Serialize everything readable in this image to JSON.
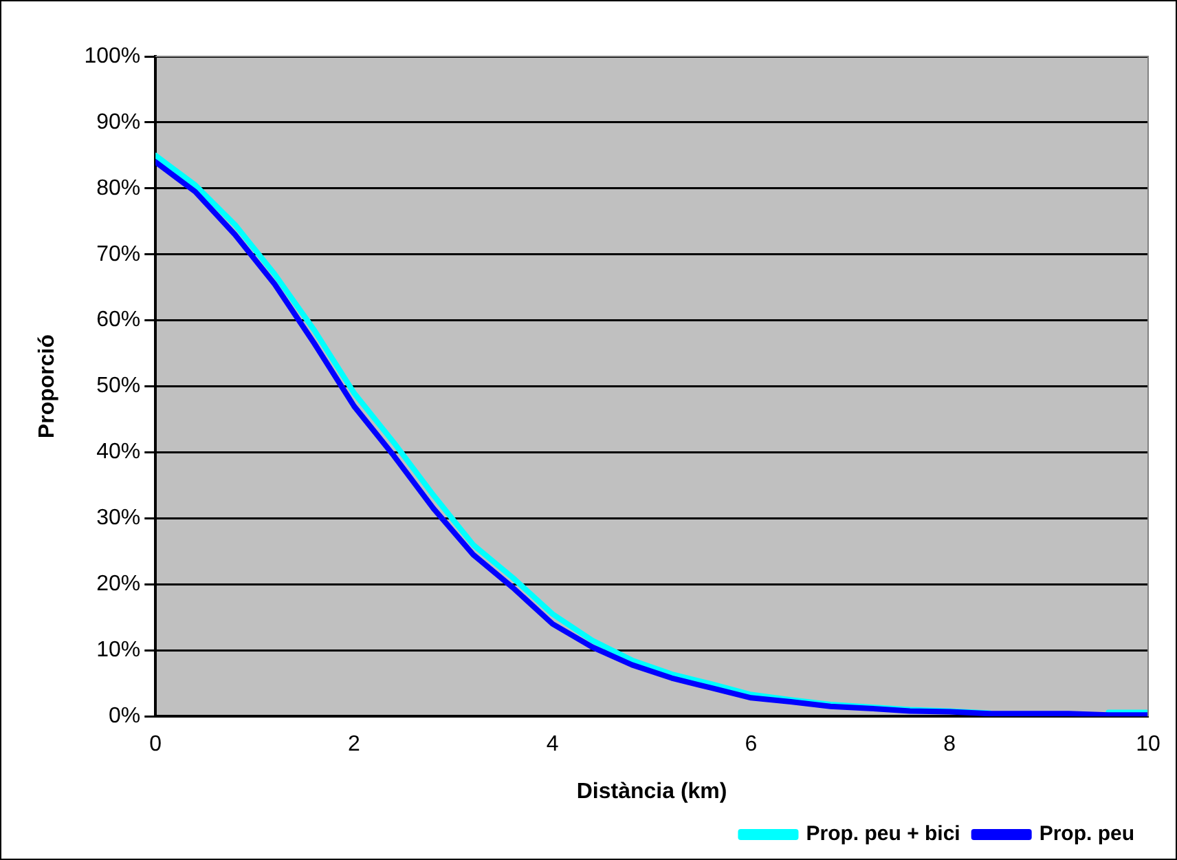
{
  "chart_data": {
    "type": "line",
    "xlabel": "Distància (km)",
    "ylabel": "Proporció",
    "xlim": [
      0,
      10
    ],
    "xticks": [
      0,
      2,
      4,
      6,
      8,
      10
    ],
    "ylim": [
      0,
      100
    ],
    "yticks": [
      {
        "value": 0,
        "label": "0%"
      },
      {
        "value": 10,
        "label": "10%"
      },
      {
        "value": 20,
        "label": "20%"
      },
      {
        "value": 30,
        "label": "30%"
      },
      {
        "value": 40,
        "label": "40%"
      },
      {
        "value": 50,
        "label": "50%"
      },
      {
        "value": 60,
        "label": "60%"
      },
      {
        "value": 70,
        "label": "70%"
      },
      {
        "value": 80,
        "label": "80%"
      },
      {
        "value": 90,
        "label": "90%"
      },
      {
        "value": 100,
        "label": "100%"
      }
    ],
    "grid": "y",
    "legend": "bottom right",
    "marker": "none",
    "line_style": "solid",
    "x": [
      0,
      0.4,
      0.8,
      1.2,
      1.6,
      2.0,
      2.4,
      2.8,
      3.2,
      3.6,
      4.0,
      4.4,
      4.8,
      5.2,
      5.6,
      6.0,
      6.4,
      6.8,
      7.2,
      7.6,
      8.0,
      8.4,
      8.8,
      9.2,
      9.6,
      10
    ],
    "series": [
      {
        "name": "Prop. peu + bici",
        "color": "#00ffff",
        "values": [
          85,
          80.5,
          74.5,
          67,
          58.5,
          49,
          41.5,
          33.5,
          26,
          21,
          15.5,
          11.5,
          8.5,
          6.4,
          4.9,
          3.3,
          2.5,
          1.8,
          1.4,
          1.0,
          0.8,
          0.5,
          null,
          null,
          0.6,
          0.6
        ]
      },
      {
        "name": "Prop. peu",
        "color": "#0000ff",
        "values": [
          84,
          79.5,
          73,
          65.5,
          56.5,
          47,
          39.5,
          31.5,
          24.5,
          19.5,
          14,
          10.5,
          7.8,
          5.8,
          4.3,
          2.8,
          2.2,
          1.5,
          1.2,
          0.8,
          0.7,
          0.4,
          0.4,
          0.4,
          0.2,
          0.2
        ]
      }
    ]
  }
}
